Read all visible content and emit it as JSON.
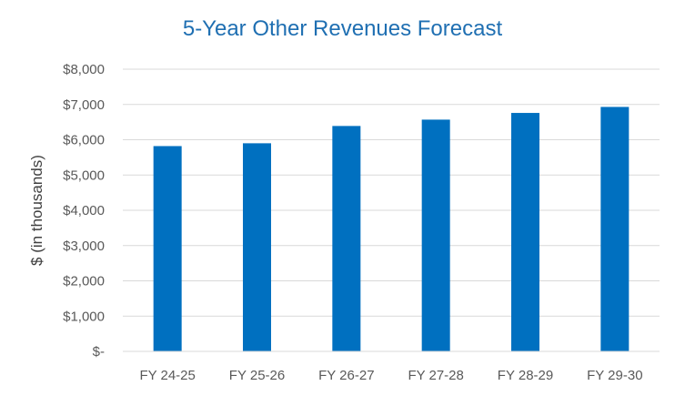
{
  "chart_data": {
    "type": "bar",
    "title": "5-Year Other Revenues Forecast",
    "xlabel": "",
    "ylabel": "$ (in thousands)",
    "categories": [
      "FY 24-25",
      "FY 25-26",
      "FY 26-27",
      "FY 27-28",
      "FY 28-29",
      "FY 29-30"
    ],
    "values": [
      5820,
      5900,
      6390,
      6570,
      6760,
      6930
    ],
    "ylim": [
      0,
      8000
    ],
    "yticks": [
      0,
      1000,
      2000,
      3000,
      4000,
      5000,
      6000,
      7000,
      8000
    ],
    "ytick_labels": [
      "$-",
      "$1,000",
      "$2,000",
      "$3,000",
      "$4,000",
      "$5,000",
      "$6,000",
      "$7,000",
      "$8,000"
    ],
    "grid": true,
    "legend": "none"
  },
  "colors": {
    "bar": "#0070C0",
    "title": "#1F6FB2",
    "grid": "#D9D9D9",
    "axis": "#D9D9D9"
  }
}
